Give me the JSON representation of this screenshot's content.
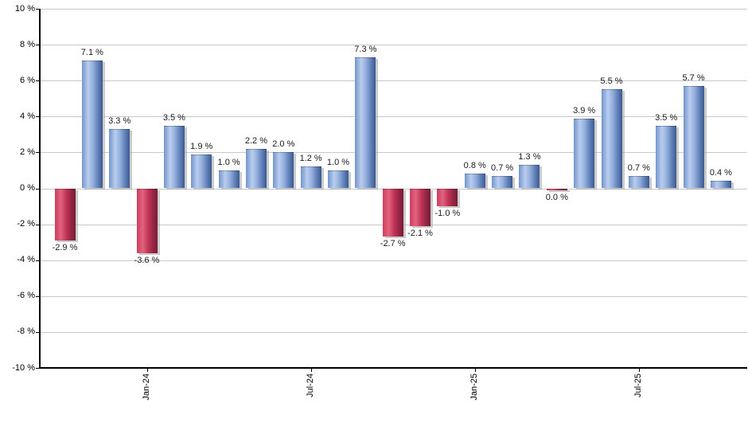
{
  "chart_data": {
    "type": "bar",
    "title": "",
    "xlabel": "",
    "ylabel": "",
    "ylim": [
      -10,
      10
    ],
    "y_tick_step": 2,
    "grid": "horizontal-only",
    "legend": "none",
    "bars": [
      {
        "value": -2.9,
        "label": "-2.9 %"
      },
      {
        "value": 7.1,
        "label": "7.1 %"
      },
      {
        "value": 3.3,
        "label": "3.3 %"
      },
      {
        "value": -3.6,
        "label": "-3.6 %"
      },
      {
        "value": 3.5,
        "label": "3.5 %"
      },
      {
        "value": 1.9,
        "label": "1.9 %"
      },
      {
        "value": 1.0,
        "label": "1.0 %"
      },
      {
        "value": 2.2,
        "label": "2.2 %"
      },
      {
        "value": 2.0,
        "label": "2.0 %"
      },
      {
        "value": 1.2,
        "label": "1.2 %"
      },
      {
        "value": 1.0,
        "label": "1.0 %"
      },
      {
        "value": 7.3,
        "label": "7.3 %"
      },
      {
        "value": -2.7,
        "label": "-2.7 %"
      },
      {
        "value": -2.1,
        "label": "-2.1 %"
      },
      {
        "value": -1.0,
        "label": "-1.0 %"
      },
      {
        "value": 0.8,
        "label": "0.8 %"
      },
      {
        "value": 0.7,
        "label": "0.7 %"
      },
      {
        "value": 1.3,
        "label": "1.3 %"
      },
      {
        "value": 0.0,
        "label": "0.0 %"
      },
      {
        "value": 3.9,
        "label": "3.9 %"
      },
      {
        "value": 5.5,
        "label": "5.5 %"
      },
      {
        "value": 0.7,
        "label": "0.7 %"
      },
      {
        "value": 3.5,
        "label": "3.5 %"
      },
      {
        "value": 5.7,
        "label": "5.7 %"
      },
      {
        "value": 0.4,
        "label": "0.4 %"
      }
    ],
    "x_ticks": [
      {
        "label": "Jan-24",
        "bar_index": 3
      },
      {
        "label": "Jul-24",
        "bar_index": 9
      },
      {
        "label": "Jan-25",
        "bar_index": 15
      },
      {
        "label": "Jul-25",
        "bar_index": 21
      }
    ],
    "y_ticks": [
      "10 %",
      "8 %",
      "6 %",
      "4 %",
      "2 %",
      "0 %",
      "-2 %",
      "-4 %",
      "-6 %",
      "-8 %",
      "-10 %"
    ],
    "colors": {
      "positive_bar": [
        "#7294cc",
        "#b9cdee",
        "#3d5a92"
      ],
      "negative_bar": [
        "#cf3d5d",
        "#e2637e",
        "#771d35"
      ],
      "gridline": "#c9c9c9",
      "axis": "#000000",
      "label_text": "#1a1a1a",
      "background": "#ffffff"
    }
  }
}
